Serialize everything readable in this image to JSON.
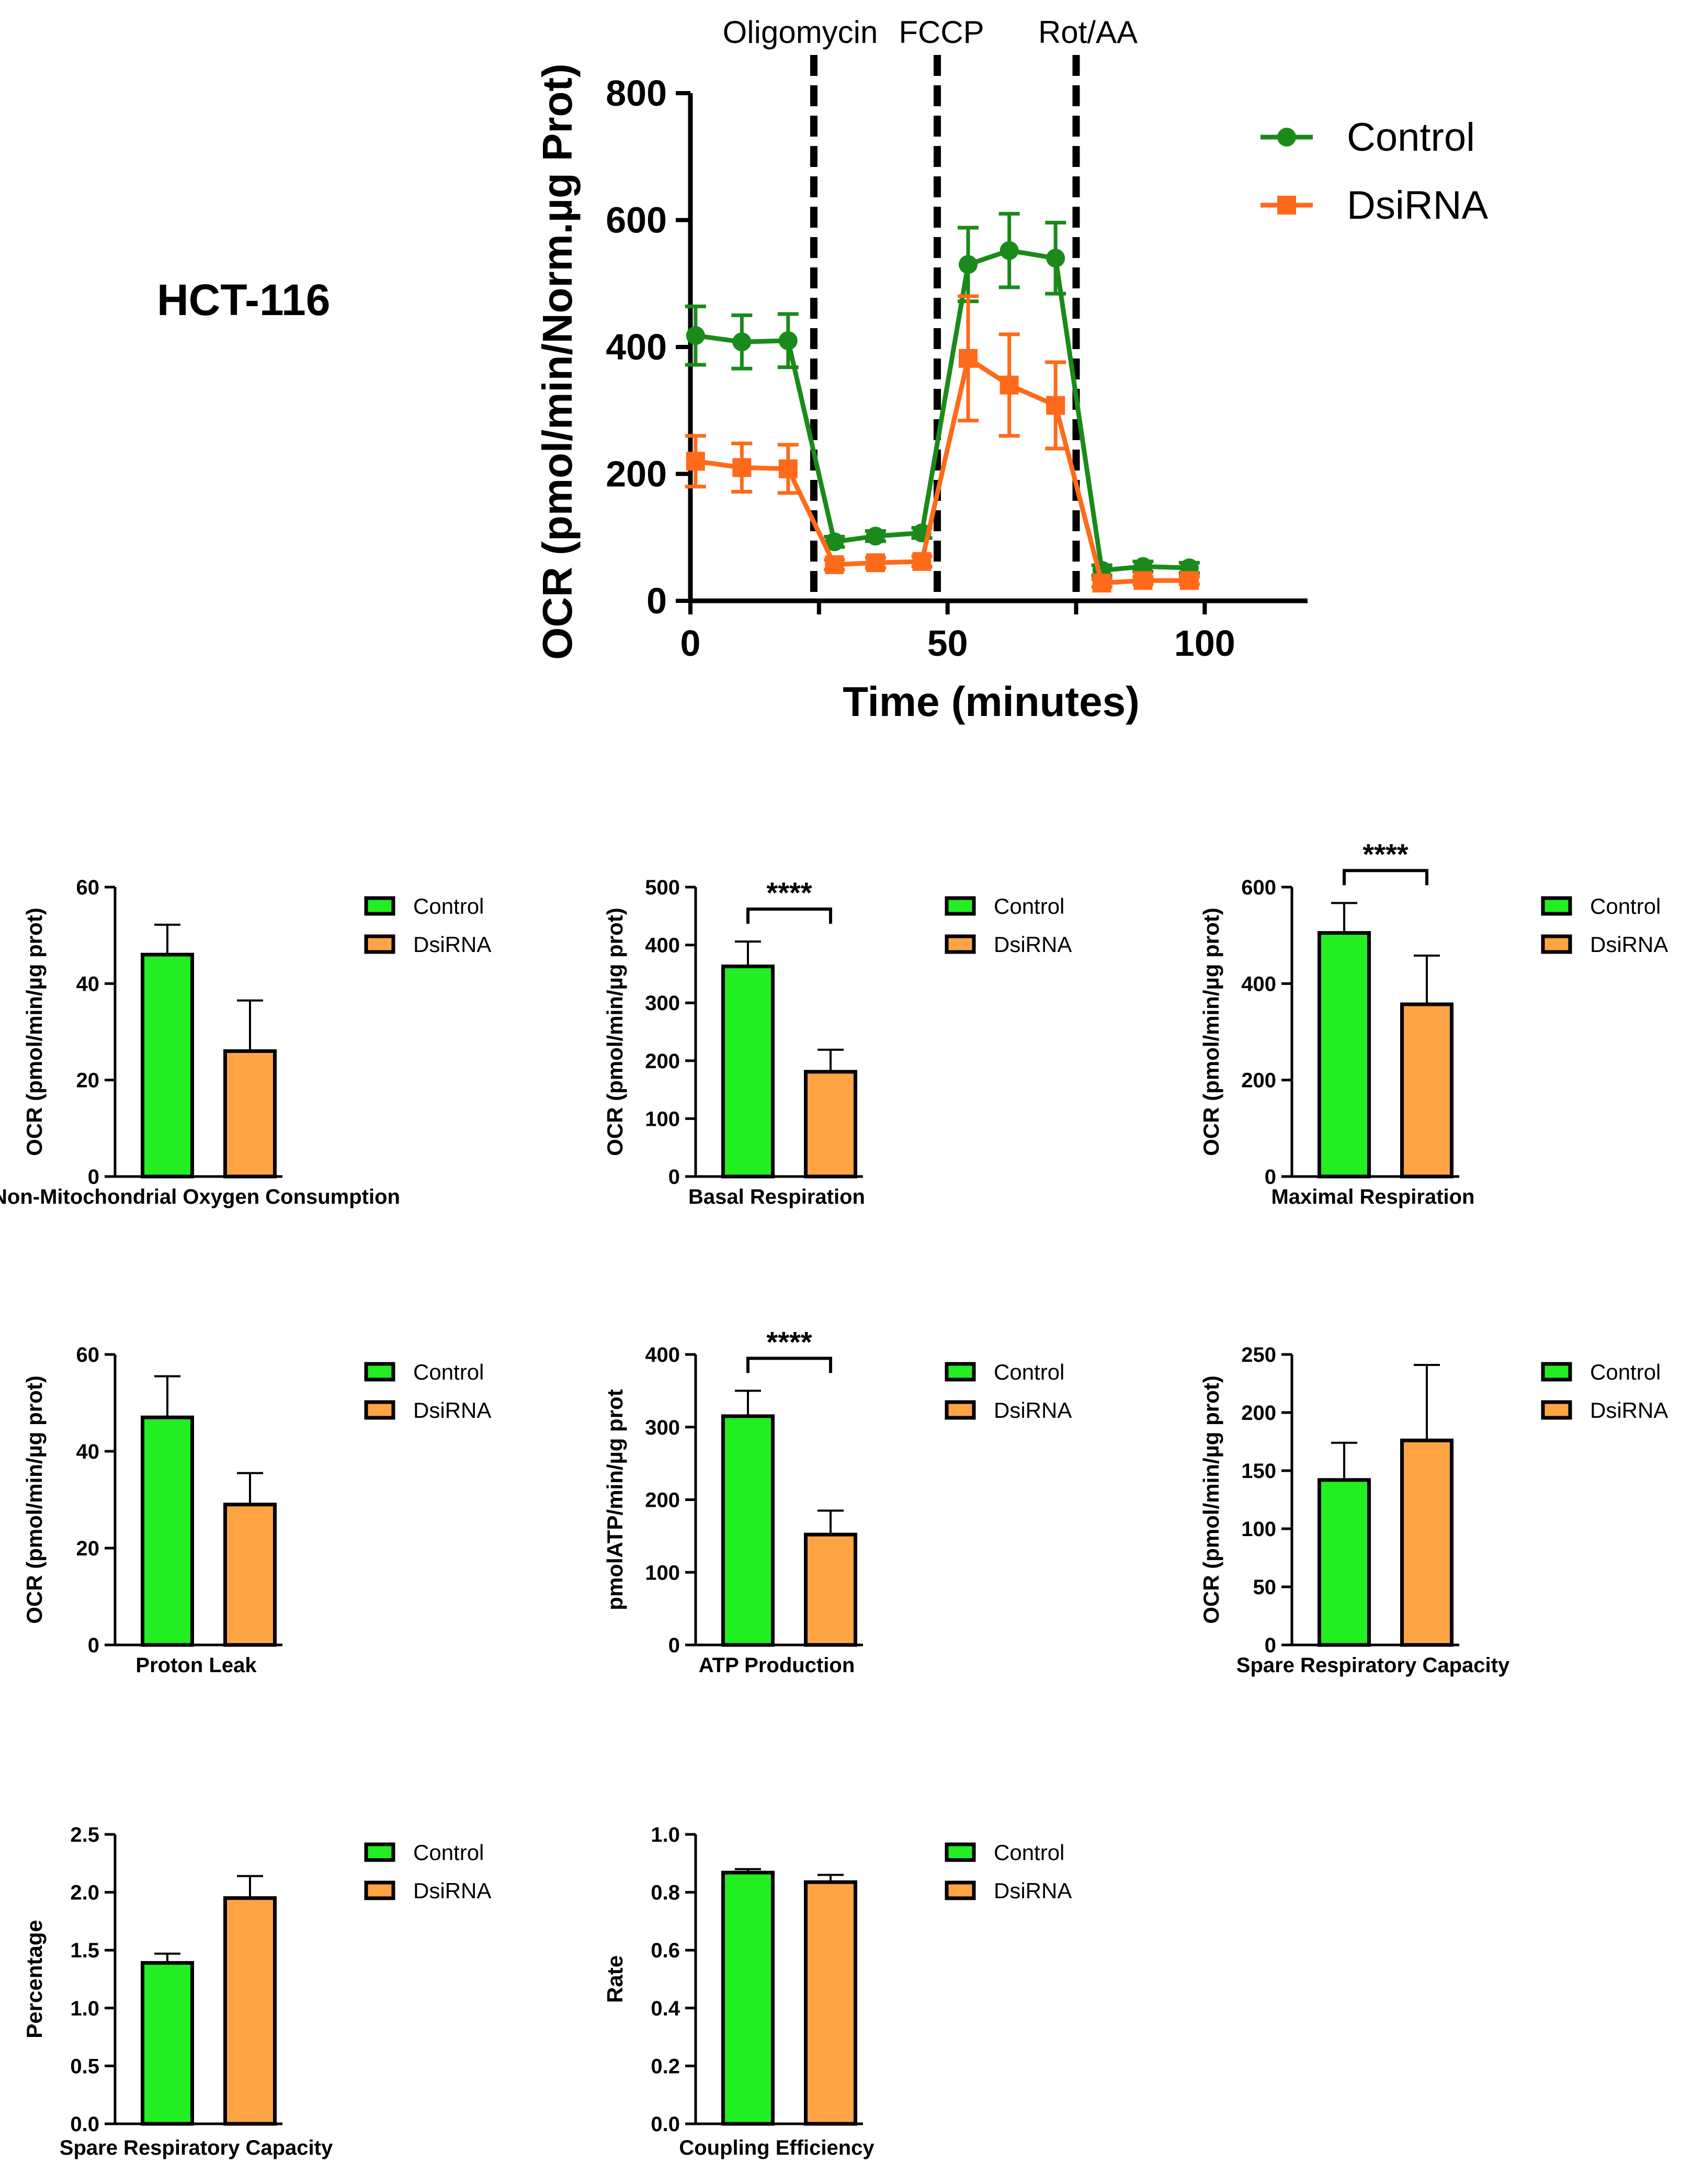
{
  "panel_label": "HCT-116",
  "colors": {
    "control_line": "#1a8a1a",
    "dsirna_line": "#ff6a1a",
    "control_bar": "#22ee22",
    "dsirna_bar": "#ffa444",
    "axis": "#000000"
  },
  "chart_data": [
    {
      "id": "ocr-timecourse",
      "type": "line",
      "title": "",
      "xlabel": "Time (minutes)",
      "ylabel": "OCR (pmol/min/Norm.µg Prot)",
      "xlim": [
        0,
        120
      ],
      "ylim": [
        0,
        800
      ],
      "xticks": [
        0,
        50,
        100
      ],
      "yticks": [
        0,
        200,
        400,
        600,
        800
      ],
      "legend_position": "top-right",
      "injections": [
        {
          "label": "Oligomycin",
          "x": 24
        },
        {
          "label": "FCCP",
          "x": 48
        },
        {
          "label": "Rot/AA",
          "x": 75
        }
      ],
      "series": [
        {
          "name": "Control",
          "marker": "circle",
          "x": [
            1,
            10,
            19,
            28,
            36,
            45,
            54,
            62,
            71,
            80,
            88,
            97
          ],
          "y": [
            418,
            408,
            410,
            93,
            102,
            107,
            530,
            552,
            540,
            48,
            54,
            52
          ],
          "err": [
            46,
            42,
            42,
            8,
            8,
            8,
            58,
            58,
            56,
            8,
            8,
            8
          ]
        },
        {
          "name": "DsiRNA",
          "marker": "square",
          "x": [
            1,
            10,
            19,
            28,
            36,
            45,
            54,
            62,
            71,
            80,
            88,
            97
          ],
          "y": [
            220,
            210,
            208,
            57,
            60,
            62,
            382,
            340,
            308,
            28,
            32,
            32
          ],
          "err": [
            40,
            38,
            38,
            8,
            8,
            8,
            98,
            80,
            68,
            6,
            6,
            6
          ]
        }
      ]
    },
    {
      "id": "non-mito-oxygen",
      "type": "bar",
      "title": "Non-Mitochondrial Oxygen Consumption",
      "ylabel": "OCR (pmol/min/µg prot)",
      "ylim": [
        0,
        60
      ],
      "yticks": [
        "0",
        "20",
        "40",
        "60"
      ],
      "categories": [
        "Control",
        "DsiRNA"
      ],
      "values": [
        46,
        26
      ],
      "errors": [
        6.2,
        10.5
      ],
      "significance": ""
    },
    {
      "id": "basal-respiration",
      "type": "bar",
      "title": "Basal Respiration",
      "ylabel": "OCR (pmol/min/µg prot)",
      "ylim": [
        0,
        500
      ],
      "yticks": [
        "0",
        "100",
        "200",
        "300",
        "400",
        "500"
      ],
      "categories": [
        "Control",
        "DsiRNA"
      ],
      "values": [
        363,
        181
      ],
      "errors": [
        43,
        38
      ],
      "significance": "****"
    },
    {
      "id": "maximal-respiration",
      "type": "bar",
      "title": "Maximal Respiration",
      "ylabel": "OCR (pmol/min/µg prot)",
      "ylim": [
        0,
        600
      ],
      "yticks": [
        "0",
        "200",
        "400",
        "600"
      ],
      "categories": [
        "Control",
        "DsiRNA"
      ],
      "values": [
        505,
        357
      ],
      "errors": [
        62,
        101
      ],
      "significance": "****"
    },
    {
      "id": "proton-leak",
      "type": "bar",
      "title": "Proton Leak",
      "ylabel": "OCR (pmol/min/µg prot)",
      "ylim": [
        0,
        60
      ],
      "yticks": [
        "0",
        "20",
        "40",
        "60"
      ],
      "categories": [
        "Control",
        "DsiRNA"
      ],
      "values": [
        47,
        29
      ],
      "errors": [
        8.5,
        6.5
      ],
      "significance": ""
    },
    {
      "id": "atp-production",
      "type": "bar",
      "title": "ATP Production",
      "ylabel": "pmolATP/min/µg prot",
      "ylim": [
        0,
        400
      ],
      "yticks": [
        "0",
        "100",
        "200",
        "300",
        "400"
      ],
      "categories": [
        "Control",
        "DsiRNA"
      ],
      "values": [
        315,
        152
      ],
      "errors": [
        35,
        33
      ],
      "significance": "****"
    },
    {
      "id": "spare-capacity-ocr",
      "type": "bar",
      "title": "Spare Respiratory Capacity",
      "ylabel": "OCR (pmol/min/µg prot)",
      "ylim": [
        0,
        250
      ],
      "yticks": [
        "0",
        "50",
        "100",
        "150",
        "200",
        "250"
      ],
      "categories": [
        "Control",
        "DsiRNA"
      ],
      "values": [
        142,
        176
      ],
      "errors": [
        32,
        65
      ],
      "significance": ""
    },
    {
      "id": "spare-capacity-pct",
      "type": "bar",
      "title": "Spare Respiratory Capacity",
      "ylabel": "Percentage",
      "ylim": [
        0,
        2.5
      ],
      "yticks": [
        "0.0",
        "0.5",
        "1.0",
        "1.5",
        "2.0",
        "2.5"
      ],
      "categories": [
        "Control",
        "DsiRNA"
      ],
      "values": [
        1.39,
        1.95
      ],
      "errors": [
        0.08,
        0.19
      ],
      "significance": ""
    },
    {
      "id": "coupling-efficiency",
      "type": "bar",
      "title": "Coupling Efficiency",
      "ylabel": "Rate",
      "ylim": [
        0,
        1.0
      ],
      "yticks": [
        "0.0",
        "0.2",
        "0.4",
        "0.6",
        "0.8",
        "1.0"
      ],
      "categories": [
        "Control",
        "DsiRNA"
      ],
      "values": [
        0.868,
        0.835
      ],
      "errors": [
        0.012,
        0.025
      ],
      "significance": ""
    }
  ]
}
